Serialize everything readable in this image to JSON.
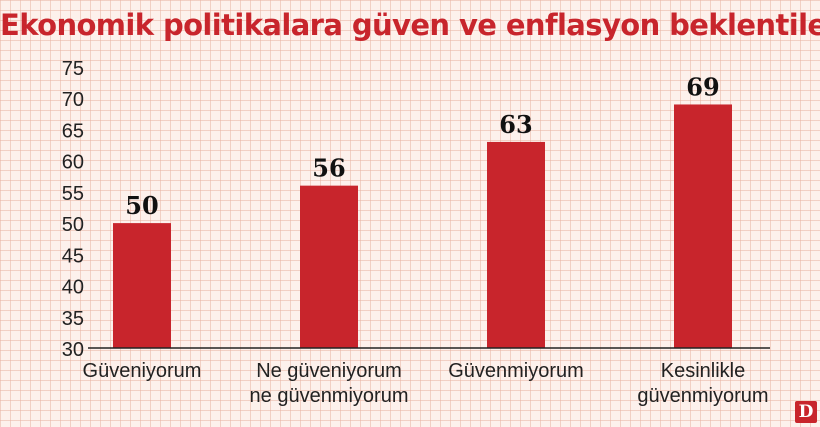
{
  "title": "Ekonomik politikalara güven ve enflasyon beklentileri",
  "logo_text": "D",
  "colors": {
    "bar": "#c8252c",
    "title": "#c8252c",
    "text": "#222222"
  },
  "chart_data": {
    "type": "bar",
    "title": "Ekonomik politikalara güven ve enflasyon beklentileri",
    "categories": [
      [
        "Güveniyorum"
      ],
      [
        "Ne güveniyorum",
        "ne güvenmiyorum"
      ],
      [
        "Güvenmiyorum"
      ],
      [
        "Kesinlikle",
        "güvenmiyorum"
      ]
    ],
    "values": [
      50,
      56,
      63,
      69
    ],
    "ylim": [
      30,
      75
    ],
    "yticks": [
      30,
      35,
      40,
      45,
      50,
      55,
      60,
      65,
      70,
      75
    ],
    "grid": false,
    "xlabel": "",
    "ylabel": ""
  }
}
